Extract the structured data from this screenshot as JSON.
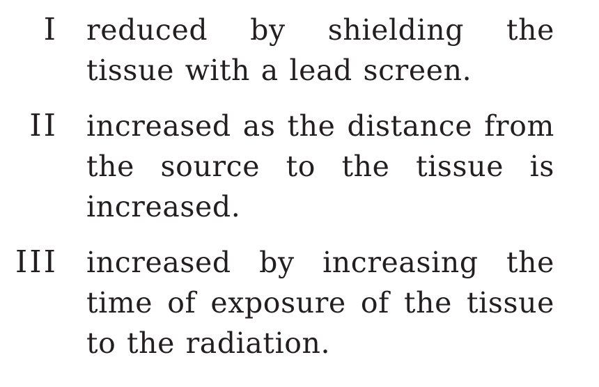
{
  "options": [
    {
      "numeral": "I",
      "text": "reduced by shielding the tissue with a lead screen."
    },
    {
      "numeral": "II",
      "text": "increased as the distance from the source to the tissue is increased."
    },
    {
      "numeral": "III",
      "text": "increased by increasing the time of exposure of the tissue to the radiation."
    }
  ]
}
